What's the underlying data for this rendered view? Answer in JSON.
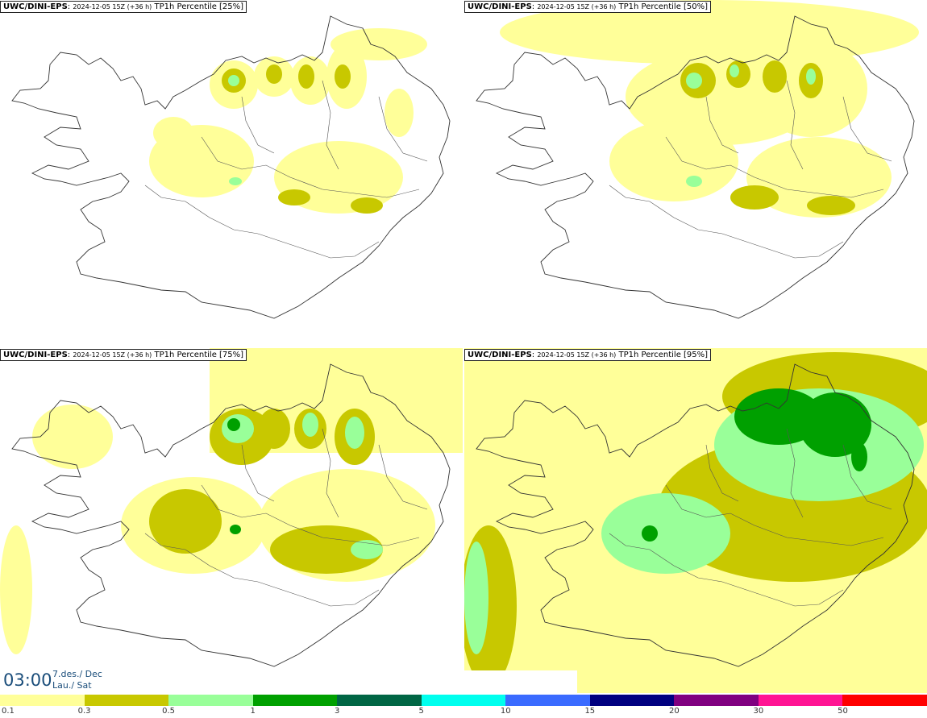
{
  "panels": [
    {
      "model": "UWC/DINI-EPS",
      "run": "2024-12-05 15Z (+36 h)",
      "field": "TP1h Percentile [25%]"
    },
    {
      "model": "UWC/DINI-EPS",
      "run": "2024-12-05 15Z (+36 h)",
      "field": "TP1h Percentile [50%]"
    },
    {
      "model": "UWC/DINI-EPS",
      "run": "2024-12-05 15Z (+36 h)",
      "field": "TP1h Percentile [75%]"
    },
    {
      "model": "UWC/DINI-EPS",
      "run": "2024-12-05 15Z (+36 h)",
      "field": "TP1h Percentile [95%]"
    }
  ],
  "valid_time": {
    "clock": "03:00",
    "date_line1": "7.des./ Dec",
    "date_line2": "Lau./ Sat"
  },
  "legend": {
    "colors": [
      "#ffff99",
      "#c8c800",
      "#99ff99",
      "#00a000",
      "#006644",
      "#00ffee",
      "#3a6bff",
      "#000080",
      "#800080",
      "#ff1493",
      "#ff0000"
    ],
    "ticks": [
      "0.1",
      "0.3",
      "0.5",
      "1",
      "3",
      "5",
      "10",
      "15",
      "20",
      "30",
      "50"
    ]
  },
  "colors": {
    "coast": "#333333",
    "roads": "#555555",
    "title_text": "#1a4d7a"
  }
}
